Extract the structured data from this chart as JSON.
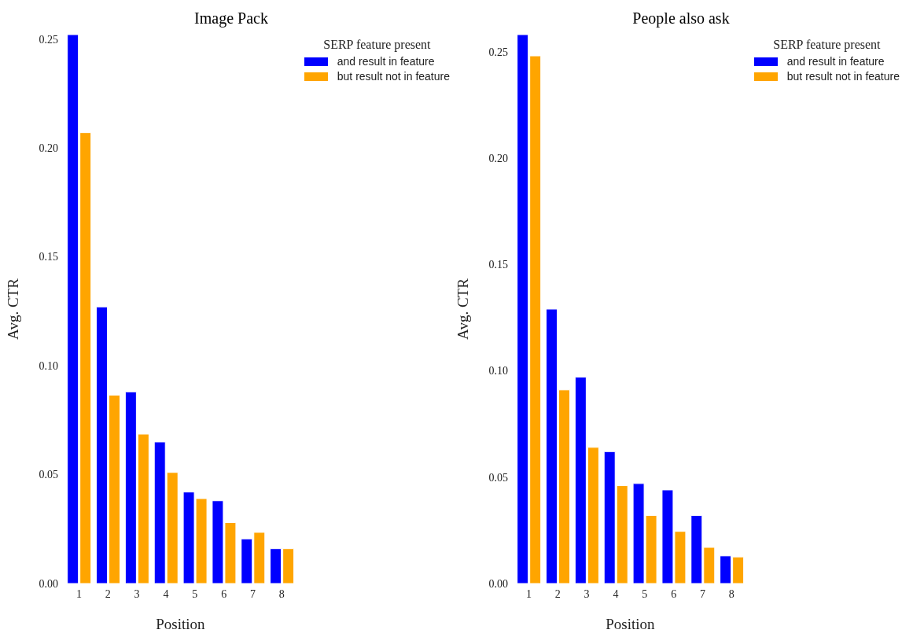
{
  "chart_data": [
    {
      "type": "bar",
      "title": "Image Pack",
      "xlabel": "Position",
      "ylabel": "Avg. CTR",
      "legend_title": "SERP feature present",
      "legend": "top right",
      "grid": false,
      "categories": [
        "1",
        "2",
        "3",
        "4",
        "5",
        "6",
        "7",
        "8"
      ],
      "series": [
        {
          "name": "and result in feature",
          "color": "#0000ff",
          "values": [
            0.252,
            0.127,
            0.088,
            0.065,
            0.042,
            0.038,
            0.0205,
            0.016
          ]
        },
        {
          "name": "but result not in feature",
          "color": "#ffa500",
          "values": [
            0.207,
            0.0865,
            0.0686,
            0.051,
            0.039,
            0.028,
            0.0235,
            0.016
          ]
        }
      ],
      "ylim": [
        0,
        0.252
      ],
      "yticks": [
        {
          "value": 0,
          "label": "0.00"
        },
        {
          "value": 0.05,
          "label": "0.05"
        },
        {
          "value": 0.1,
          "label": "0.10"
        },
        {
          "value": 0.15,
          "label": "0.15"
        },
        {
          "value": 0.2,
          "label": "0.20"
        },
        {
          "value": 0.25,
          "label": "0.25"
        }
      ]
    },
    {
      "type": "bar",
      "title": "People also ask",
      "xlabel": "Position",
      "ylabel": "Avg. CTR",
      "legend_title": "SERP feature present",
      "legend": "top right",
      "grid": false,
      "categories": [
        "1",
        "2",
        "3",
        "4",
        "5",
        "6",
        "7",
        "8"
      ],
      "series": [
        {
          "name": "and result in feature",
          "color": "#0000ff",
          "values": [
            0.258,
            0.129,
            0.097,
            0.062,
            0.047,
            0.044,
            0.032,
            0.013
          ]
        },
        {
          "name": "but result not in feature",
          "color": "#ffa500",
          "values": [
            0.248,
            0.091,
            0.064,
            0.046,
            0.032,
            0.0245,
            0.017,
            0.0125
          ]
        }
      ],
      "ylim": [
        0,
        0.258
      ],
      "yticks": [
        {
          "value": 0,
          "label": "0.00"
        },
        {
          "value": 0.05,
          "label": "0.05"
        },
        {
          "value": 0.1,
          "label": "0.10"
        },
        {
          "value": 0.15,
          "label": "0.15"
        },
        {
          "value": 0.2,
          "label": "0.20"
        },
        {
          "value": 0.25,
          "label": "0.25"
        }
      ]
    }
  ]
}
